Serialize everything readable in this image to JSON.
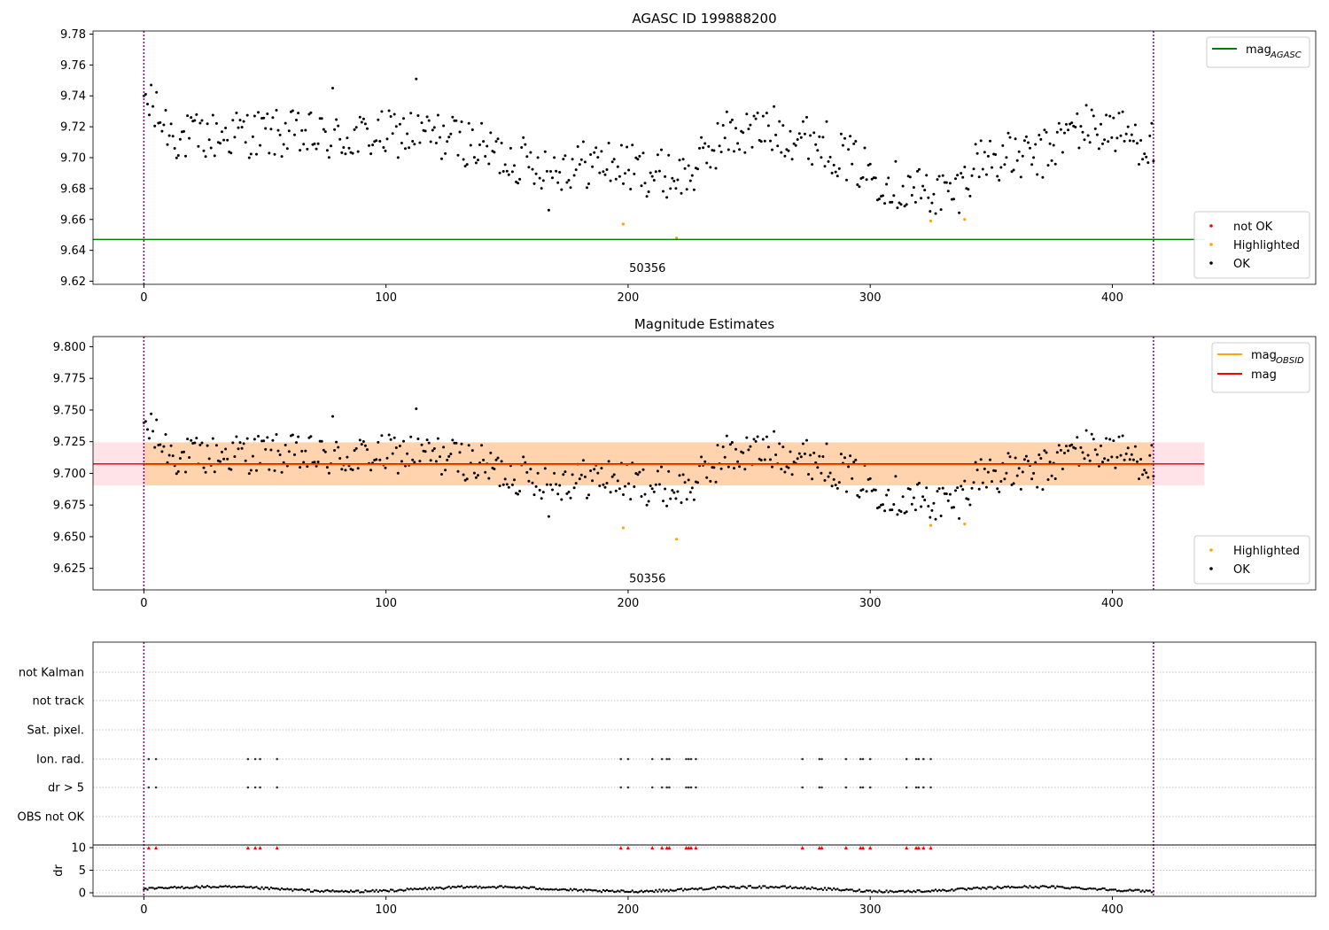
{
  "chart_data": [
    {
      "type": "scatter",
      "title": "AGASC ID 199888200",
      "x_ticks": [
        0,
        100,
        200,
        300,
        400
      ],
      "y_ticks": [
        9.62,
        9.64,
        9.66,
        9.68,
        9.7,
        9.72,
        9.74,
        9.76,
        9.78
      ],
      "xlim": [
        -21,
        484
      ],
      "ylim": [
        9.618,
        9.782
      ],
      "obsid_bounds": [
        0,
        417
      ],
      "obsid_label": {
        "text": "50356",
        "x": 208,
        "y": 9.626
      },
      "mag_agasc": 9.647,
      "legend_lines": [
        {
          "name": "mag",
          "sub": "AGASC",
          "color": "#008000"
        }
      ],
      "legend_points": [
        {
          "name": "not OK",
          "color": "#ff0000"
        },
        {
          "name": "Highlighted",
          "color": "#ffa500"
        },
        {
          "name": "OK",
          "color": "#000000"
        }
      ],
      "highlighted": [
        [
          198,
          9.657
        ],
        [
          220,
          9.648
        ],
        [
          325,
          9.659
        ],
        [
          339,
          9.66
        ]
      ]
    },
    {
      "type": "scatter",
      "title": "Magnitude Estimates",
      "x_ticks": [
        0,
        100,
        200,
        300,
        400
      ],
      "y_ticks": [
        9.625,
        9.65,
        9.675,
        9.7,
        9.725,
        9.75,
        9.775,
        9.8
      ],
      "xlim": [
        -21,
        484
      ],
      "ylim": [
        9.608,
        9.808
      ],
      "obsid_bounds": [
        0,
        417
      ],
      "obsid_label": {
        "text": "50356",
        "x": 208,
        "y": 9.614
      },
      "mag": 9.7075,
      "mag_obsid": 9.707,
      "mag_band": [
        9.6905,
        9.7245
      ],
      "band_xrange": [
        -21,
        438
      ],
      "legend_lines": [
        {
          "name": "mag",
          "sub": "OBSID",
          "color": "#ffa500"
        },
        {
          "name": "mag",
          "sub": "",
          "color": "#ff0000"
        }
      ],
      "legend_points": [
        {
          "name": "Highlighted",
          "color": "#ffa500"
        },
        {
          "name": "OK",
          "color": "#000000"
        }
      ],
      "highlighted": [
        [
          198,
          9.657
        ],
        [
          220,
          9.648
        ],
        [
          325,
          9.659
        ],
        [
          339,
          9.66
        ]
      ]
    },
    {
      "type": "scatter",
      "categories": [
        "not Kalman",
        "not track",
        "Sat. pixel.",
        "Ion. rad.",
        "dr > 5",
        "OBS not OK"
      ],
      "ylabel": "dr",
      "dr_ticks": [
        0,
        5,
        10
      ],
      "x_ticks": [
        0,
        100,
        200,
        300,
        400
      ],
      "xlim": [
        -21,
        484
      ],
      "obsid_bounds": [
        0,
        417
      ],
      "flagged_x": [
        2,
        5,
        43,
        46,
        48,
        55,
        197,
        200,
        210,
        214,
        216,
        217,
        224,
        225,
        226,
        228,
        272,
        279,
        280,
        290,
        296,
        297,
        300,
        315,
        319,
        320,
        322,
        325
      ]
    }
  ]
}
